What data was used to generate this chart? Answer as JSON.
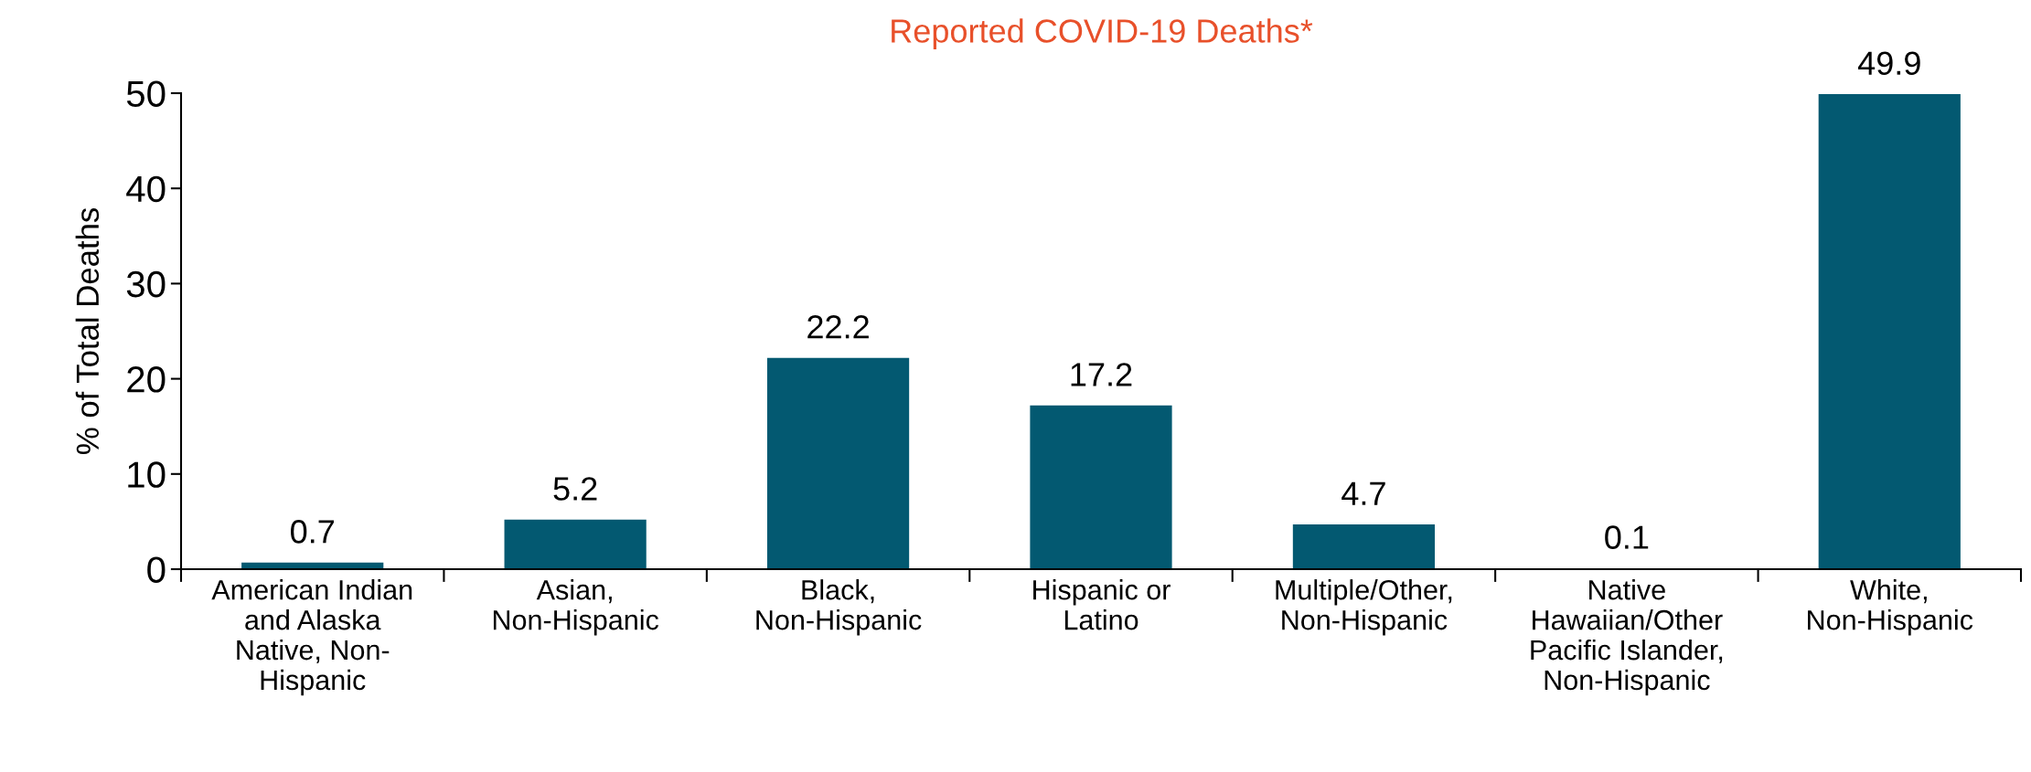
{
  "chart_data": {
    "type": "bar",
    "title": "Reported COVID-19 Deaths*",
    "ylabel": "% of Total Deaths",
    "categories": [
      "American Indian\nand Alaska\nNative, Non-\nHispanic",
      "Asian,\nNon-Hispanic",
      "Black,\nNon-Hispanic",
      "Hispanic or\nLatino",
      "Multiple/Other,\nNon-Hispanic",
      "Native\nHawaiian/Other\nPacific Islander,\nNon-Hispanic",
      "White,\nNon-Hispanic"
    ],
    "values": [
      0.7,
      5.2,
      22.2,
      17.2,
      4.7,
      0.1,
      49.9
    ],
    "color": "#035971",
    "ylim": [
      0,
      50
    ],
    "yticks": [
      0,
      10,
      20,
      30,
      40,
      50
    ],
    "data_labels": true,
    "grid": false
  }
}
